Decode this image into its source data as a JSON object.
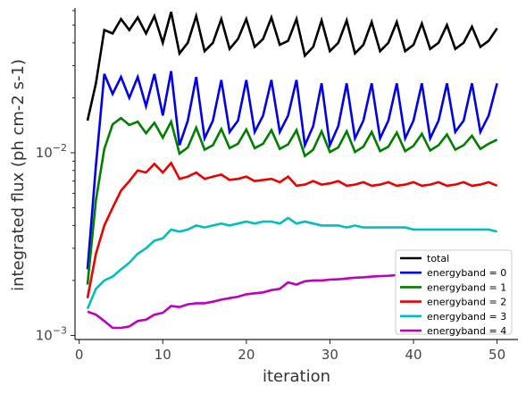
{
  "chart_data": {
    "type": "line",
    "title": "",
    "xlabel": "iteration",
    "ylabel": "integrated flux (ph cm-2 s-1)",
    "xlim": [
      -0.5,
      52.5
    ],
    "ylim": [
      0.00095,
      0.062
    ],
    "yscale": "log",
    "grid": false,
    "legend_position": "lower-right",
    "x_ticks": [
      0,
      10,
      20,
      30,
      40,
      50
    ],
    "x_tick_labels": [
      "0",
      "10",
      "20",
      "30",
      "40",
      "50"
    ],
    "y_ticks": [
      0.001,
      0.01
    ],
    "y_tick_labels": [
      "10^{-3}",
      "10^{-2}"
    ],
    "x": [
      1,
      2,
      3,
      4,
      5,
      6,
      7,
      8,
      9,
      10,
      11,
      12,
      13,
      14,
      15,
      16,
      17,
      18,
      19,
      20,
      21,
      22,
      23,
      24,
      25,
      26,
      27,
      28,
      29,
      30,
      31,
      32,
      33,
      34,
      35,
      36,
      37,
      38,
      39,
      40,
      41,
      42,
      43,
      44,
      45,
      46,
      47,
      48,
      49,
      50
    ],
    "series": [
      {
        "name": "total",
        "color": "#000000",
        "values": [
          0.015,
          0.024,
          0.047,
          0.045,
          0.054,
          0.047,
          0.055,
          0.045,
          0.056,
          0.04,
          0.059,
          0.035,
          0.04,
          0.056,
          0.036,
          0.04,
          0.054,
          0.037,
          0.042,
          0.054,
          0.038,
          0.042,
          0.055,
          0.039,
          0.041,
          0.054,
          0.034,
          0.038,
          0.053,
          0.036,
          0.04,
          0.053,
          0.035,
          0.039,
          0.052,
          0.036,
          0.04,
          0.052,
          0.036,
          0.039,
          0.051,
          0.037,
          0.04,
          0.05,
          0.037,
          0.04,
          0.049,
          0.038,
          0.041,
          0.048
        ]
      },
      {
        "name": "energyband = 0",
        "color": "#0000ee",
        "values": [
          0.0023,
          0.0085,
          0.027,
          0.021,
          0.026,
          0.02,
          0.026,
          0.018,
          0.027,
          0.016,
          0.028,
          0.011,
          0.015,
          0.026,
          0.012,
          0.015,
          0.025,
          0.013,
          0.015,
          0.025,
          0.013,
          0.016,
          0.025,
          0.013,
          0.016,
          0.025,
          0.011,
          0.014,
          0.024,
          0.011,
          0.014,
          0.024,
          0.012,
          0.015,
          0.024,
          0.012,
          0.015,
          0.024,
          0.012,
          0.015,
          0.024,
          0.012,
          0.015,
          0.024,
          0.013,
          0.015,
          0.024,
          0.013,
          0.016,
          0.024
        ]
      },
      {
        "name": "energyband = 1",
        "color": "#007f00",
        "values": [
          0.0019,
          0.0055,
          0.0105,
          0.0143,
          0.0155,
          0.0142,
          0.0148,
          0.0128,
          0.0146,
          0.0121,
          0.0148,
          0.0099,
          0.0107,
          0.0137,
          0.0104,
          0.011,
          0.0135,
          0.0106,
          0.0112,
          0.0134,
          0.0106,
          0.0112,
          0.0133,
          0.0105,
          0.0111,
          0.0133,
          0.0096,
          0.0104,
          0.0131,
          0.0101,
          0.0107,
          0.0131,
          0.0101,
          0.0108,
          0.013,
          0.0102,
          0.0108,
          0.0129,
          0.0102,
          0.0109,
          0.0127,
          0.0103,
          0.011,
          0.0126,
          0.0104,
          0.011,
          0.0124,
          0.0105,
          0.0112,
          0.0118
        ]
      },
      {
        "name": "energyband = 2",
        "color": "#ee0000",
        "values": [
          0.0016,
          0.0028,
          0.004,
          0.005,
          0.0062,
          0.007,
          0.008,
          0.0078,
          0.0087,
          0.0078,
          0.0088,
          0.0072,
          0.0074,
          0.0078,
          0.0072,
          0.0074,
          0.0076,
          0.0071,
          0.0072,
          0.0074,
          0.007,
          0.0071,
          0.0072,
          0.0069,
          0.0074,
          0.0066,
          0.0067,
          0.007,
          0.0067,
          0.0068,
          0.007,
          0.0066,
          0.0067,
          0.0069,
          0.0066,
          0.0067,
          0.0069,
          0.0066,
          0.0067,
          0.0069,
          0.0066,
          0.0067,
          0.0069,
          0.0066,
          0.0067,
          0.0069,
          0.0066,
          0.0067,
          0.0069,
          0.0066
        ]
      },
      {
        "name": "energyband = 3",
        "color": "#00bfbf",
        "values": [
          0.0014,
          0.0018,
          0.002,
          0.0021,
          0.0023,
          0.0025,
          0.0028,
          0.003,
          0.0033,
          0.0034,
          0.0038,
          0.0037,
          0.0038,
          0.004,
          0.0039,
          0.004,
          0.0041,
          0.004,
          0.0041,
          0.0042,
          0.0041,
          0.0042,
          0.0042,
          0.0041,
          0.0044,
          0.0041,
          0.0042,
          0.0041,
          0.004,
          0.004,
          0.004,
          0.0039,
          0.004,
          0.0039,
          0.0039,
          0.0039,
          0.0039,
          0.0039,
          0.0039,
          0.0038,
          0.0038,
          0.0038,
          0.0038,
          0.0038,
          0.0038,
          0.0038,
          0.0038,
          0.0038,
          0.0038,
          0.0037
        ]
      },
      {
        "name": "energyband = 4",
        "color": "#bf00bf",
        "values": [
          0.00135,
          0.0013,
          0.0012,
          0.0011,
          0.0011,
          0.00112,
          0.0012,
          0.00122,
          0.0013,
          0.00133,
          0.00145,
          0.00143,
          0.00148,
          0.0015,
          0.0015,
          0.00153,
          0.00157,
          0.0016,
          0.00163,
          0.00168,
          0.0017,
          0.00172,
          0.00177,
          0.0018,
          0.00195,
          0.0019,
          0.00198,
          0.002,
          0.002,
          0.00202,
          0.00203,
          0.00205,
          0.00207,
          0.00208,
          0.0021,
          0.00211,
          0.00212,
          0.00214,
          0.00215,
          0.00216,
          0.00217,
          0.00218,
          0.00219,
          0.0022,
          0.00221,
          0.00222,
          0.00223,
          0.00224,
          0.00225,
          0.00226
        ]
      }
    ]
  }
}
